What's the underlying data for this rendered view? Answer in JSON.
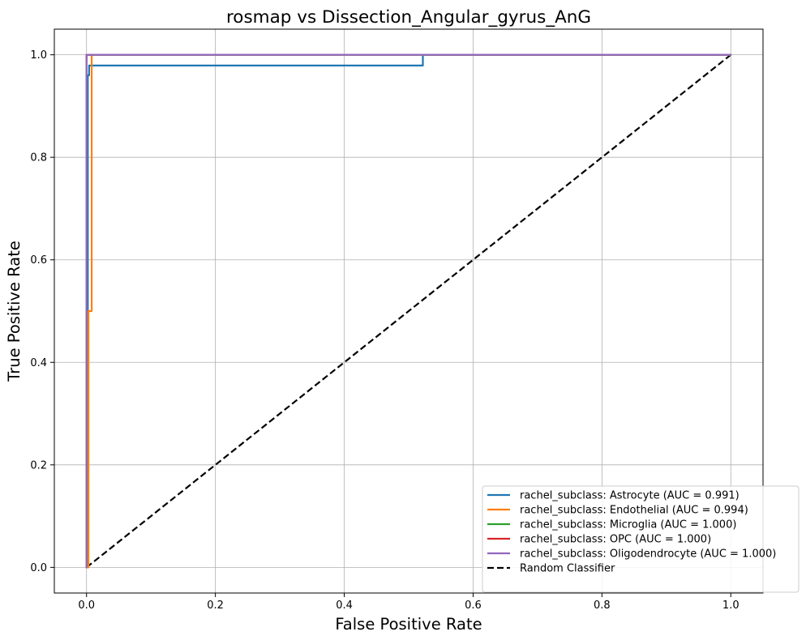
{
  "chart_data": {
    "type": "line",
    "title": "rosmap vs Dissection_Angular_gyrus_AnG",
    "xlabel": "False Positive Rate",
    "ylabel": "True Positive Rate",
    "xlim": [
      -0.05,
      1.05
    ],
    "ylim": [
      -0.05,
      1.05
    ],
    "xticks": [
      "0.0",
      "0.2",
      "0.4",
      "0.6",
      "0.8",
      "1.0"
    ],
    "yticks": [
      "0.0",
      "0.2",
      "0.4",
      "0.6",
      "0.8",
      "1.0"
    ],
    "grid": true,
    "legend_position": "lower right",
    "series": [
      {
        "name": "rachel_subclass: Astrocyte (AUC = 0.991)",
        "color": "#1f77b4",
        "style": "solid",
        "x": [
          0.0,
          0.002,
          0.002,
          0.004,
          0.004,
          0.522,
          0.522,
          1.0
        ],
        "y": [
          0.0,
          0.0,
          0.96,
          0.96,
          0.979,
          0.979,
          1.0,
          1.0
        ]
      },
      {
        "name": "rachel_subclass: Endothelial (AUC = 0.994)",
        "color": "#ff7f0e",
        "style": "solid",
        "x": [
          0.0,
          0.003,
          0.003,
          0.008,
          0.008,
          1.0
        ],
        "y": [
          0.0,
          0.0,
          0.5,
          0.5,
          1.0,
          1.0
        ]
      },
      {
        "name": "rachel_subclass: Microglia (AUC = 1.000)",
        "color": "#2ca02c",
        "style": "solid",
        "x": [
          0.0,
          0.0,
          0.01,
          1.0
        ],
        "y": [
          0.0,
          1.0,
          1.0,
          1.0
        ]
      },
      {
        "name": "rachel_subclass: OPC (AUC = 1.000)",
        "color": "#d62728",
        "style": "solid",
        "x": [
          0.0,
          0.0,
          0.01
        ],
        "y": [
          0.99,
          1.0,
          1.0
        ]
      },
      {
        "name": "rachel_subclass: Oligodendrocyte (AUC = 1.000)",
        "color": "#9467bd",
        "style": "solid",
        "x": [
          0.0,
          0.0,
          1.0
        ],
        "y": [
          0.0,
          1.0,
          1.0
        ]
      },
      {
        "name": "Random Classifier",
        "color": "#000000",
        "style": "dashed",
        "x": [
          0.0,
          1.0
        ],
        "y": [
          0.0,
          1.0
        ]
      }
    ]
  }
}
